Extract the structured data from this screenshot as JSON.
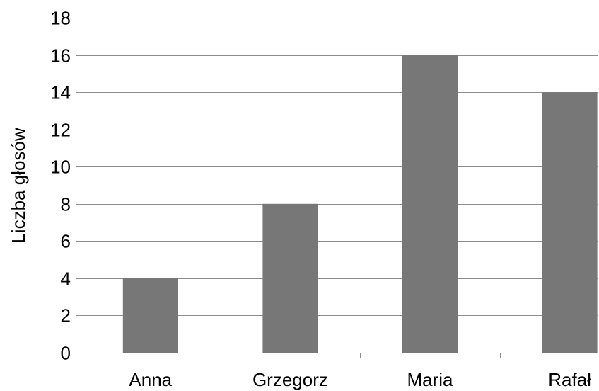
{
  "chart_data": {
    "type": "bar",
    "title": "",
    "xlabel": "",
    "ylabel": "Liczba głosów",
    "categories": [
      "Anna",
      "Grzegorz",
      "Maria",
      "Rafał"
    ],
    "values": [
      4,
      8,
      16,
      14
    ],
    "ylim": [
      0,
      18
    ],
    "yticks": [
      0,
      2,
      4,
      6,
      8,
      10,
      12,
      14,
      16,
      18
    ],
    "grid": true,
    "legend": "none",
    "colors": {
      "bar": "#777777",
      "grid": "#8c8c8c",
      "axis": "#8c8c8c"
    }
  }
}
